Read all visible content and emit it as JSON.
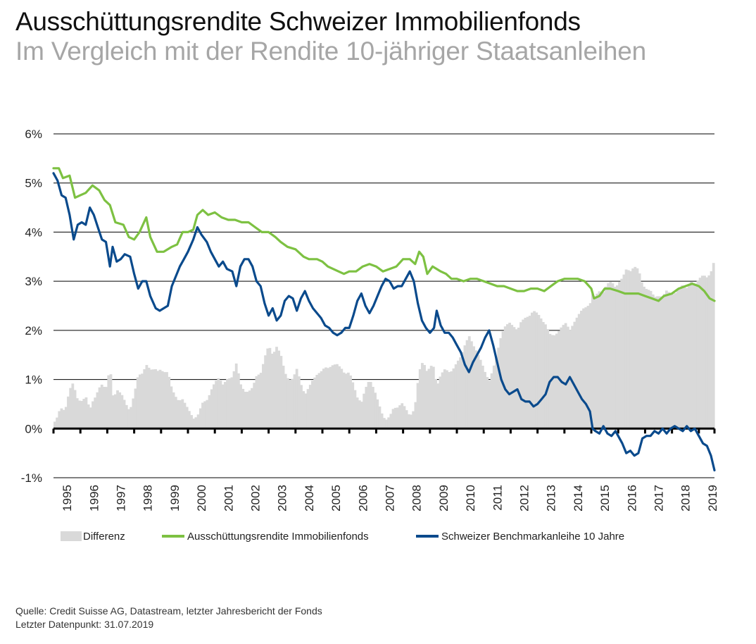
{
  "title": "Ausschüttungsrendite Schweizer Immobilienfonds",
  "subtitle": "Im Vergleich mit der Rendite 10-jähriger Staatsanleihen",
  "source_line1": "Quelle: Credit Suisse AG, Datastream, letzter Jahresbericht der Fonds",
  "source_line2": "Letzter Datenpunkt: 31.07.2019",
  "colors": {
    "differenz": "#d9d9d9",
    "immobilienfonds": "#7dc142",
    "benchmark": "#0a4a8c",
    "grid": "#000000"
  },
  "chart_data": {
    "type": "line",
    "title": "Ausschüttungsrendite Schweizer Immobilienfonds",
    "subtitle": "Im Vergleich mit der Rendite 10-jähriger Staatsanleihen",
    "xlabel": "",
    "ylabel": "",
    "ylim": [
      -1,
      6
    ],
    "xlim": [
      1995.0,
      2019.58
    ],
    "y_ticks": [
      6,
      5,
      4,
      3,
      2,
      1,
      0,
      -1
    ],
    "y_tick_labels": [
      "6%",
      "5%",
      "4%",
      "3%",
      "2%",
      "1%",
      "0%",
      "-1%"
    ],
    "x_tick_labels": [
      "1995",
      "1996",
      "1997",
      "1998",
      "1999",
      "2000",
      "2001",
      "2002",
      "2003",
      "2004",
      "2005",
      "2006",
      "2007",
      "2008",
      "2009",
      "2010",
      "2011",
      "2012",
      "2013",
      "2014",
      "2015",
      "2016",
      "2017",
      "2018",
      "2019"
    ],
    "grid": true,
    "legend_position": "bottom",
    "series": [
      {
        "name": "Differenz",
        "type": "area",
        "note": "Ausschüttungsrendite minus Benchmarkanleihe"
      },
      {
        "name": "Ausschüttungsrendite Immobilienfonds",
        "type": "line",
        "points": [
          [
            1995.0,
            5.3
          ],
          [
            1995.2,
            5.3
          ],
          [
            1995.35,
            5.1
          ],
          [
            1995.6,
            5.15
          ],
          [
            1995.8,
            4.7
          ],
          [
            1996.0,
            4.75
          ],
          [
            1996.2,
            4.8
          ],
          [
            1996.45,
            4.95
          ],
          [
            1996.7,
            4.85
          ],
          [
            1996.9,
            4.65
          ],
          [
            1997.1,
            4.55
          ],
          [
            1997.3,
            4.2
          ],
          [
            1997.6,
            4.15
          ],
          [
            1997.8,
            3.9
          ],
          [
            1998.0,
            3.85
          ],
          [
            1998.2,
            4.0
          ],
          [
            1998.45,
            4.3
          ],
          [
            1998.6,
            3.9
          ],
          [
            1998.85,
            3.6
          ],
          [
            1999.1,
            3.6
          ],
          [
            1999.4,
            3.7
          ],
          [
            1999.6,
            3.75
          ],
          [
            1999.8,
            4.0
          ],
          [
            2000.0,
            4.0
          ],
          [
            2000.2,
            4.05
          ],
          [
            2000.35,
            4.35
          ],
          [
            2000.55,
            4.45
          ],
          [
            2000.75,
            4.35
          ],
          [
            2001.0,
            4.4
          ],
          [
            2001.25,
            4.3
          ],
          [
            2001.5,
            4.25
          ],
          [
            2001.75,
            4.25
          ],
          [
            2002.0,
            4.2
          ],
          [
            2002.25,
            4.2
          ],
          [
            2002.5,
            4.1
          ],
          [
            2002.75,
            4.0
          ],
          [
            2003.0,
            4.0
          ],
          [
            2003.25,
            3.9
          ],
          [
            2003.45,
            3.8
          ],
          [
            2003.7,
            3.7
          ],
          [
            2004.0,
            3.65
          ],
          [
            2004.3,
            3.5
          ],
          [
            2004.5,
            3.45
          ],
          [
            2004.8,
            3.45
          ],
          [
            2005.0,
            3.4
          ],
          [
            2005.2,
            3.3
          ],
          [
            2005.4,
            3.25
          ],
          [
            2005.6,
            3.2
          ],
          [
            2005.8,
            3.15
          ],
          [
            2006.0,
            3.2
          ],
          [
            2006.25,
            3.2
          ],
          [
            2006.5,
            3.3
          ],
          [
            2006.75,
            3.35
          ],
          [
            2007.0,
            3.3
          ],
          [
            2007.25,
            3.2
          ],
          [
            2007.5,
            3.25
          ],
          [
            2007.75,
            3.3
          ],
          [
            2008.0,
            3.45
          ],
          [
            2008.25,
            3.45
          ],
          [
            2008.45,
            3.35
          ],
          [
            2008.6,
            3.6
          ],
          [
            2008.75,
            3.5
          ],
          [
            2008.9,
            3.15
          ],
          [
            2009.1,
            3.3
          ],
          [
            2009.4,
            3.2
          ],
          [
            2009.6,
            3.15
          ],
          [
            2009.8,
            3.05
          ],
          [
            2010.0,
            3.05
          ],
          [
            2010.25,
            3.0
          ],
          [
            2010.5,
            3.05
          ],
          [
            2010.75,
            3.05
          ],
          [
            2011.0,
            3.0
          ],
          [
            2011.25,
            2.95
          ],
          [
            2011.5,
            2.9
          ],
          [
            2011.75,
            2.9
          ],
          [
            2012.0,
            2.85
          ],
          [
            2012.25,
            2.8
          ],
          [
            2012.5,
            2.8
          ],
          [
            2012.75,
            2.85
          ],
          [
            2013.0,
            2.85
          ],
          [
            2013.25,
            2.8
          ],
          [
            2013.5,
            2.9
          ],
          [
            2013.75,
            3.0
          ],
          [
            2014.0,
            3.05
          ],
          [
            2014.25,
            3.05
          ],
          [
            2014.5,
            3.05
          ],
          [
            2014.75,
            3.0
          ],
          [
            2015.0,
            2.85
          ],
          [
            2015.1,
            2.65
          ],
          [
            2015.3,
            2.7
          ],
          [
            2015.5,
            2.85
          ],
          [
            2015.7,
            2.85
          ],
          [
            2016.0,
            2.8
          ],
          [
            2016.25,
            2.75
          ],
          [
            2016.5,
            2.75
          ],
          [
            2016.75,
            2.75
          ],
          [
            2017.0,
            2.7
          ],
          [
            2017.25,
            2.65
          ],
          [
            2017.5,
            2.6
          ],
          [
            2017.7,
            2.7
          ],
          [
            2018.0,
            2.75
          ],
          [
            2018.25,
            2.85
          ],
          [
            2018.5,
            2.9
          ],
          [
            2018.75,
            2.95
          ],
          [
            2019.0,
            2.9
          ],
          [
            2019.2,
            2.8
          ],
          [
            2019.4,
            2.65
          ],
          [
            2019.58,
            2.6
          ]
        ]
      },
      {
        "name": "Schweizer Benchmarkanleihe 10 Jahre",
        "type": "line",
        "points": [
          [
            1995.0,
            5.2
          ],
          [
            1995.15,
            5.05
          ],
          [
            1995.3,
            4.75
          ],
          [
            1995.45,
            4.7
          ],
          [
            1995.6,
            4.35
          ],
          [
            1995.75,
            3.85
          ],
          [
            1995.9,
            4.15
          ],
          [
            1996.05,
            4.2
          ],
          [
            1996.2,
            4.15
          ],
          [
            1996.35,
            4.5
          ],
          [
            1996.5,
            4.35
          ],
          [
            1996.65,
            4.1
          ],
          [
            1996.8,
            3.85
          ],
          [
            1996.95,
            3.8
          ],
          [
            1997.1,
            3.3
          ],
          [
            1997.2,
            3.7
          ],
          [
            1997.35,
            3.4
          ],
          [
            1997.5,
            3.45
          ],
          [
            1997.65,
            3.55
          ],
          [
            1997.85,
            3.5
          ],
          [
            1998.0,
            3.15
          ],
          [
            1998.15,
            2.85
          ],
          [
            1998.3,
            3.0
          ],
          [
            1998.45,
            3.0
          ],
          [
            1998.6,
            2.7
          ],
          [
            1998.8,
            2.45
          ],
          [
            1998.95,
            2.4
          ],
          [
            1999.1,
            2.45
          ],
          [
            1999.25,
            2.5
          ],
          [
            1999.4,
            2.9
          ],
          [
            1999.55,
            3.1
          ],
          [
            1999.7,
            3.3
          ],
          [
            1999.85,
            3.45
          ],
          [
            2000.0,
            3.6
          ],
          [
            2000.2,
            3.85
          ],
          [
            2000.35,
            4.1
          ],
          [
            2000.5,
            3.95
          ],
          [
            2000.7,
            3.8
          ],
          [
            2000.85,
            3.6
          ],
          [
            2001.0,
            3.45
          ],
          [
            2001.15,
            3.3
          ],
          [
            2001.3,
            3.4
          ],
          [
            2001.45,
            3.25
          ],
          [
            2001.65,
            3.2
          ],
          [
            2001.8,
            2.9
          ],
          [
            2001.95,
            3.3
          ],
          [
            2002.1,
            3.45
          ],
          [
            2002.25,
            3.45
          ],
          [
            2002.4,
            3.3
          ],
          [
            2002.55,
            3.0
          ],
          [
            2002.7,
            2.9
          ],
          [
            2002.85,
            2.55
          ],
          [
            2003.0,
            2.3
          ],
          [
            2003.15,
            2.45
          ],
          [
            2003.3,
            2.2
          ],
          [
            2003.45,
            2.3
          ],
          [
            2003.6,
            2.6
          ],
          [
            2003.75,
            2.7
          ],
          [
            2003.9,
            2.65
          ],
          [
            2004.05,
            2.4
          ],
          [
            2004.2,
            2.65
          ],
          [
            2004.35,
            2.8
          ],
          [
            2004.5,
            2.6
          ],
          [
            2004.65,
            2.45
          ],
          [
            2004.8,
            2.35
          ],
          [
            2004.95,
            2.25
          ],
          [
            2005.1,
            2.1
          ],
          [
            2005.25,
            2.05
          ],
          [
            2005.4,
            1.95
          ],
          [
            2005.55,
            1.9
          ],
          [
            2005.7,
            1.95
          ],
          [
            2005.85,
            2.05
          ],
          [
            2006.0,
            2.05
          ],
          [
            2006.15,
            2.3
          ],
          [
            2006.3,
            2.6
          ],
          [
            2006.45,
            2.75
          ],
          [
            2006.6,
            2.5
          ],
          [
            2006.75,
            2.35
          ],
          [
            2006.9,
            2.5
          ],
          [
            2007.05,
            2.7
          ],
          [
            2007.2,
            2.9
          ],
          [
            2007.35,
            3.05
          ],
          [
            2007.5,
            3.0
          ],
          [
            2007.65,
            2.85
          ],
          [
            2007.8,
            2.9
          ],
          [
            2007.95,
            2.9
          ],
          [
            2008.1,
            3.05
          ],
          [
            2008.25,
            3.2
          ],
          [
            2008.4,
            3.0
          ],
          [
            2008.55,
            2.55
          ],
          [
            2008.7,
            2.2
          ],
          [
            2008.85,
            2.05
          ],
          [
            2009.0,
            1.95
          ],
          [
            2009.15,
            2.05
          ],
          [
            2009.25,
            2.4
          ],
          [
            2009.4,
            2.1
          ],
          [
            2009.55,
            1.95
          ],
          [
            2009.7,
            1.95
          ],
          [
            2009.85,
            1.85
          ],
          [
            2010.0,
            1.7
          ],
          [
            2010.15,
            1.55
          ],
          [
            2010.3,
            1.3
          ],
          [
            2010.45,
            1.15
          ],
          [
            2010.6,
            1.35
          ],
          [
            2010.75,
            1.5
          ],
          [
            2010.9,
            1.65
          ],
          [
            2011.05,
            1.85
          ],
          [
            2011.2,
            2.0
          ],
          [
            2011.35,
            1.7
          ],
          [
            2011.5,
            1.35
          ],
          [
            2011.65,
            1.0
          ],
          [
            2011.8,
            0.8
          ],
          [
            2011.95,
            0.7
          ],
          [
            2012.1,
            0.75
          ],
          [
            2012.25,
            0.8
          ],
          [
            2012.4,
            0.6
          ],
          [
            2012.55,
            0.55
          ],
          [
            2012.7,
            0.55
          ],
          [
            2012.85,
            0.45
          ],
          [
            2013.0,
            0.5
          ],
          [
            2013.15,
            0.6
          ],
          [
            2013.3,
            0.7
          ],
          [
            2013.45,
            0.95
          ],
          [
            2013.6,
            1.05
          ],
          [
            2013.75,
            1.05
          ],
          [
            2013.9,
            0.95
          ],
          [
            2014.05,
            0.9
          ],
          [
            2014.2,
            1.05
          ],
          [
            2014.35,
            0.9
          ],
          [
            2014.5,
            0.75
          ],
          [
            2014.65,
            0.6
          ],
          [
            2014.8,
            0.5
          ],
          [
            2014.95,
            0.35
          ],
          [
            2015.05,
            0.0
          ],
          [
            2015.15,
            -0.05
          ],
          [
            2015.3,
            -0.1
          ],
          [
            2015.45,
            0.05
          ],
          [
            2015.6,
            -0.1
          ],
          [
            2015.75,
            -0.15
          ],
          [
            2015.9,
            -0.05
          ],
          [
            2016.0,
            -0.15
          ],
          [
            2016.15,
            -0.3
          ],
          [
            2016.3,
            -0.5
          ],
          [
            2016.45,
            -0.45
          ],
          [
            2016.6,
            -0.55
          ],
          [
            2016.75,
            -0.5
          ],
          [
            2016.9,
            -0.2
          ],
          [
            2017.05,
            -0.15
          ],
          [
            2017.2,
            -0.15
          ],
          [
            2017.35,
            -0.05
          ],
          [
            2017.5,
            -0.1
          ],
          [
            2017.65,
            0.0
          ],
          [
            2017.8,
            -0.1
          ],
          [
            2017.95,
            0.0
          ],
          [
            2018.1,
            0.05
          ],
          [
            2018.25,
            0.0
          ],
          [
            2018.4,
            -0.05
          ],
          [
            2018.55,
            0.05
          ],
          [
            2018.7,
            -0.05
          ],
          [
            2018.85,
            0.0
          ],
          [
            2019.0,
            -0.15
          ],
          [
            2019.15,
            -0.3
          ],
          [
            2019.3,
            -0.35
          ],
          [
            2019.45,
            -0.55
          ],
          [
            2019.58,
            -0.85
          ]
        ]
      }
    ]
  },
  "legend": {
    "differenz": "Differenz",
    "immobilienfonds": "Ausschüttungsrendite Immobilienfonds",
    "benchmark": "Schweizer Benchmarkanleihe 10 Jahre"
  }
}
